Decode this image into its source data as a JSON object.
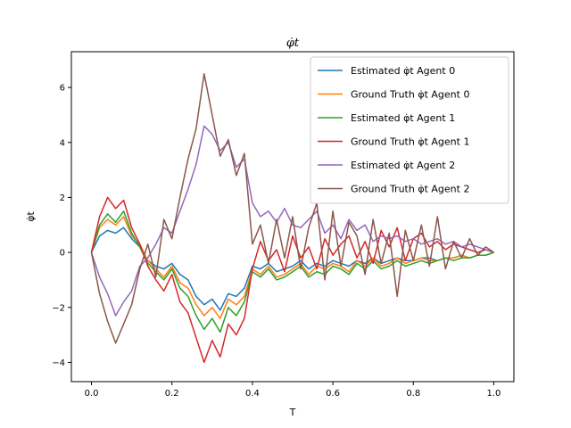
{
  "chart_data": {
    "type": "line",
    "title": "φ̇t",
    "xlabel": "T",
    "ylabel": "φ̇t",
    "xlim": [
      -0.05,
      1.05
    ],
    "ylim": [
      -4.7,
      7.3
    ],
    "xticks": [
      "0.0",
      "0.2",
      "0.4",
      "0.6",
      "0.8",
      "1.0"
    ],
    "xtick_values": [
      0,
      0.2,
      0.4,
      0.6,
      0.8,
      1.0
    ],
    "yticks": [
      "−4",
      "−2",
      "0",
      "2",
      "4",
      "6"
    ],
    "ytick_values": [
      -4,
      -2,
      0,
      2,
      4,
      6
    ],
    "legend_position": "top-right",
    "x": [
      0.0,
      0.02,
      0.04,
      0.06,
      0.08,
      0.1,
      0.12,
      0.14,
      0.16,
      0.18,
      0.2,
      0.22,
      0.24,
      0.26,
      0.28,
      0.3,
      0.32,
      0.34,
      0.36,
      0.38,
      0.4,
      0.42,
      0.44,
      0.46,
      0.48,
      0.5,
      0.52,
      0.54,
      0.56,
      0.58,
      0.6,
      0.62,
      0.64,
      0.66,
      0.68,
      0.7,
      0.72,
      0.74,
      0.76,
      0.78,
      0.8,
      0.82,
      0.84,
      0.86,
      0.88,
      0.9,
      0.92,
      0.94,
      0.96,
      0.98,
      1.0
    ],
    "series": [
      {
        "name": "Estimated φ̇t Agent 0",
        "color": "#1f77b4",
        "values": [
          0.0,
          0.6,
          0.8,
          0.7,
          0.9,
          0.5,
          0.2,
          -0.3,
          -0.5,
          -0.6,
          -0.4,
          -0.8,
          -1.0,
          -1.6,
          -1.9,
          -1.7,
          -2.1,
          -1.5,
          -1.6,
          -1.3,
          -0.5,
          -0.6,
          -0.4,
          -0.7,
          -0.6,
          -0.5,
          -0.3,
          -0.6,
          -0.4,
          -0.5,
          -0.3,
          -0.4,
          -0.5,
          -0.3,
          -0.4,
          -0.2,
          -0.4,
          -0.3,
          -0.2,
          -0.3,
          -0.3,
          -0.2,
          -0.2,
          -0.3,
          -0.2,
          -0.2,
          -0.1,
          -0.2,
          -0.1,
          -0.1,
          0.0
        ]
      },
      {
        "name": "Ground Truth φ̇t Agent 0",
        "color": "#ff7f0e",
        "values": [
          0.0,
          0.9,
          1.2,
          1.0,
          1.3,
          0.6,
          0.3,
          -0.3,
          -0.6,
          -0.9,
          -0.5,
          -1.1,
          -1.3,
          -1.9,
          -2.3,
          -2.0,
          -2.4,
          -1.7,
          -1.9,
          -1.6,
          -0.6,
          -0.8,
          -0.5,
          -0.9,
          -0.8,
          -0.6,
          -0.4,
          -0.8,
          -0.5,
          -0.6,
          -0.4,
          -0.5,
          -0.7,
          -0.3,
          -0.5,
          -0.2,
          -0.5,
          -0.4,
          -0.2,
          -0.4,
          -0.3,
          -0.2,
          -0.3,
          -0.3,
          -0.2,
          -0.2,
          -0.1,
          -0.2,
          -0.1,
          -0.1,
          0.0
        ]
      },
      {
        "name": "Estimated φ̇t Agent 1",
        "color": "#2ca02c",
        "values": [
          0.0,
          1.0,
          1.4,
          1.1,
          1.5,
          0.7,
          0.2,
          -0.4,
          -0.7,
          -1.0,
          -0.6,
          -1.3,
          -1.6,
          -2.3,
          -2.8,
          -2.4,
          -2.9,
          -2.0,
          -2.3,
          -1.8,
          -0.7,
          -0.9,
          -0.6,
          -1.0,
          -0.9,
          -0.7,
          -0.5,
          -0.9,
          -0.7,
          -0.8,
          -0.5,
          -0.6,
          -0.8,
          -0.4,
          -0.6,
          -0.3,
          -0.6,
          -0.5,
          -0.3,
          -0.5,
          -0.4,
          -0.3,
          -0.4,
          -0.3,
          -0.2,
          -0.3,
          -0.2,
          -0.2,
          -0.1,
          -0.1,
          0.0
        ]
      },
      {
        "name": "Ground Truth φ̇t Agent 1",
        "color": "#d62728",
        "values": [
          0.0,
          1.3,
          2.0,
          1.6,
          1.9,
          0.9,
          0.3,
          -0.5,
          -1.0,
          -1.4,
          -0.8,
          -1.8,
          -2.2,
          -3.1,
          -4.0,
          -3.2,
          -3.8,
          -2.6,
          -3.0,
          -2.4,
          -0.6,
          0.4,
          -0.3,
          0.1,
          -0.7,
          0.6,
          -0.2,
          0.2,
          -0.6,
          0.5,
          -0.1,
          0.3,
          0.6,
          -0.2,
          0.4,
          -0.4,
          0.8,
          0.2,
          0.9,
          -0.3,
          0.5,
          0.7,
          0.2,
          0.4,
          0.1,
          0.3,
          0.2,
          0.1,
          0.0,
          0.1,
          0.0
        ]
      },
      {
        "name": "Estimated φ̇t Agent 2",
        "color": "#9467bd",
        "values": [
          0.0,
          -0.9,
          -1.5,
          -2.3,
          -1.8,
          -1.4,
          -0.5,
          -0.2,
          0.3,
          0.9,
          0.7,
          1.5,
          2.3,
          3.2,
          4.6,
          4.3,
          3.7,
          4.0,
          3.1,
          3.4,
          1.8,
          1.3,
          1.5,
          1.1,
          1.6,
          1.0,
          0.9,
          1.2,
          1.5,
          0.7,
          1.0,
          0.5,
          1.2,
          0.8,
          1.0,
          0.4,
          0.6,
          0.5,
          0.6,
          0.4,
          0.5,
          0.3,
          0.4,
          0.5,
          0.3,
          0.4,
          0.2,
          0.3,
          0.2,
          0.1,
          0.0
        ]
      },
      {
        "name": "Ground Truth φ̇t Agent 2",
        "color": "#8c564b",
        "values": [
          0.0,
          -1.5,
          -2.5,
          -3.3,
          -2.6,
          -1.9,
          -0.6,
          0.3,
          -0.9,
          1.2,
          0.5,
          2.0,
          3.4,
          4.5,
          6.5,
          5.0,
          3.5,
          4.1,
          2.8,
          3.6,
          0.3,
          1.0,
          -0.4,
          1.2,
          -0.2,
          1.3,
          -0.6,
          0.9,
          1.8,
          -1.0,
          1.5,
          -0.5,
          1.1,
          0.6,
          -0.8,
          1.2,
          -0.4,
          0.7,
          -1.6,
          0.8,
          -0.3,
          1.0,
          -0.5,
          1.3,
          -0.6,
          0.4,
          -0.2,
          0.5,
          -0.1,
          0.2,
          0.0
        ]
      }
    ]
  }
}
